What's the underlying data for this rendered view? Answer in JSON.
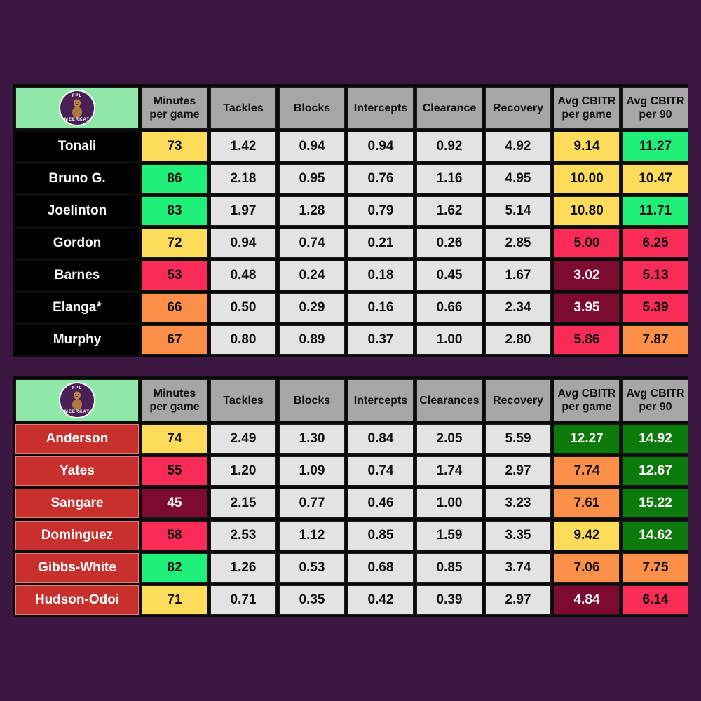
{
  "colors": {
    "yellow": "#fddc5c",
    "bright_green": "#1ef07a",
    "dark_green": "#0b7a0b",
    "pink": "#f92c57",
    "orange": "#fc9048",
    "maroon": "#7d0b2f",
    "grey": "#e3e3e3",
    "header_grey": "#a6a6a6",
    "background": "#3a1640"
  },
  "logo": {
    "top_text": "FPL",
    "bottom_text": "MEERKAT"
  },
  "chart_data": [
    {
      "type": "table",
      "columns": [
        "",
        "Minutes\nper game",
        "Tackles",
        "Blocks",
        "Intercepts",
        "Clearance",
        "Recovery",
        "Avg CBITR\nper game",
        "Avg CBITR\nper 90"
      ],
      "rows": [
        {
          "player": "Tonali",
          "values": [
            "73",
            "1.42",
            "0.94",
            "0.94",
            "0.92",
            "4.92",
            "9.14",
            "11.27"
          ],
          "colors": [
            "yellow",
            "grey",
            "grey",
            "grey",
            "grey",
            "grey",
            "yellow",
            "bright_green"
          ]
        },
        {
          "player": "Bruno G.",
          "values": [
            "86",
            "2.18",
            "0.95",
            "0.76",
            "1.16",
            "4.95",
            "10.00",
            "10.47"
          ],
          "colors": [
            "bright_green",
            "grey",
            "grey",
            "grey",
            "grey",
            "grey",
            "yellow",
            "yellow"
          ]
        },
        {
          "player": "Joelinton",
          "values": [
            "83",
            "1.97",
            "1.28",
            "0.79",
            "1.62",
            "5.14",
            "10.80",
            "11.71"
          ],
          "colors": [
            "bright_green",
            "grey",
            "grey",
            "grey",
            "grey",
            "grey",
            "yellow",
            "bright_green"
          ]
        },
        {
          "player": "Gordon",
          "values": [
            "72",
            "0.94",
            "0.74",
            "0.21",
            "0.26",
            "2.85",
            "5.00",
            "6.25"
          ],
          "colors": [
            "yellow",
            "grey",
            "grey",
            "grey",
            "grey",
            "grey",
            "pink",
            "pink"
          ]
        },
        {
          "player": "Barnes",
          "values": [
            "53",
            "0.48",
            "0.24",
            "0.18",
            "0.45",
            "1.67",
            "3.02",
            "5.13"
          ],
          "colors": [
            "pink",
            "grey",
            "grey",
            "grey",
            "grey",
            "grey",
            "maroon",
            "pink"
          ]
        },
        {
          "player": "Elanga*",
          "values": [
            "66",
            "0.50",
            "0.29",
            "0.16",
            "0.66",
            "2.34",
            "3.95",
            "5.39"
          ],
          "colors": [
            "orange",
            "grey",
            "grey",
            "grey",
            "grey",
            "grey",
            "maroon",
            "pink"
          ]
        },
        {
          "player": "Murphy",
          "values": [
            "67",
            "0.80",
            "0.89",
            "0.37",
            "1.00",
            "2.80",
            "5.86",
            "7.87"
          ],
          "colors": [
            "orange",
            "grey",
            "grey",
            "grey",
            "grey",
            "grey",
            "pink",
            "orange"
          ]
        }
      ]
    },
    {
      "type": "table",
      "columns": [
        "",
        "Minutes\nper game",
        "Tackles",
        "Blocks",
        "Intercepts",
        "Clearances",
        "Recovery",
        "Avg CBITR\nper game",
        "Avg CBITR\nper 90"
      ],
      "rows": [
        {
          "player": "Anderson",
          "values": [
            "74",
            "2.49",
            "1.30",
            "0.84",
            "2.05",
            "5.59",
            "12.27",
            "14.92"
          ],
          "colors": [
            "yellow",
            "grey",
            "grey",
            "grey",
            "grey",
            "grey",
            "dark_green",
            "dark_green"
          ]
        },
        {
          "player": "Yates",
          "values": [
            "55",
            "1.20",
            "1.09",
            "0.74",
            "1.74",
            "2.97",
            "7.74",
            "12.67"
          ],
          "colors": [
            "pink",
            "grey",
            "grey",
            "grey",
            "grey",
            "grey",
            "orange",
            "dark_green"
          ]
        },
        {
          "player": "Sangare",
          "values": [
            "45",
            "2.15",
            "0.77",
            "0.46",
            "1.00",
            "3.23",
            "7.61",
            "15.22"
          ],
          "colors": [
            "maroon",
            "grey",
            "grey",
            "grey",
            "grey",
            "grey",
            "orange",
            "dark_green"
          ]
        },
        {
          "player": "Dominguez",
          "values": [
            "58",
            "2.53",
            "1.12",
            "0.85",
            "1.59",
            "3.35",
            "9.42",
            "14.62"
          ],
          "colors": [
            "pink",
            "grey",
            "grey",
            "grey",
            "grey",
            "grey",
            "yellow",
            "dark_green"
          ]
        },
        {
          "player": "Gibbs-White",
          "values": [
            "82",
            "1.26",
            "0.53",
            "0.68",
            "0.85",
            "3.74",
            "7.06",
            "7.75"
          ],
          "colors": [
            "bright_green",
            "grey",
            "grey",
            "grey",
            "grey",
            "grey",
            "orange",
            "orange"
          ]
        },
        {
          "player": "Hudson-Odoi",
          "values": [
            "71",
            "0.71",
            "0.35",
            "0.42",
            "0.39",
            "2.97",
            "4.84",
            "6.14"
          ],
          "colors": [
            "yellow",
            "grey",
            "grey",
            "grey",
            "grey",
            "grey",
            "maroon",
            "pink"
          ]
        }
      ]
    }
  ]
}
